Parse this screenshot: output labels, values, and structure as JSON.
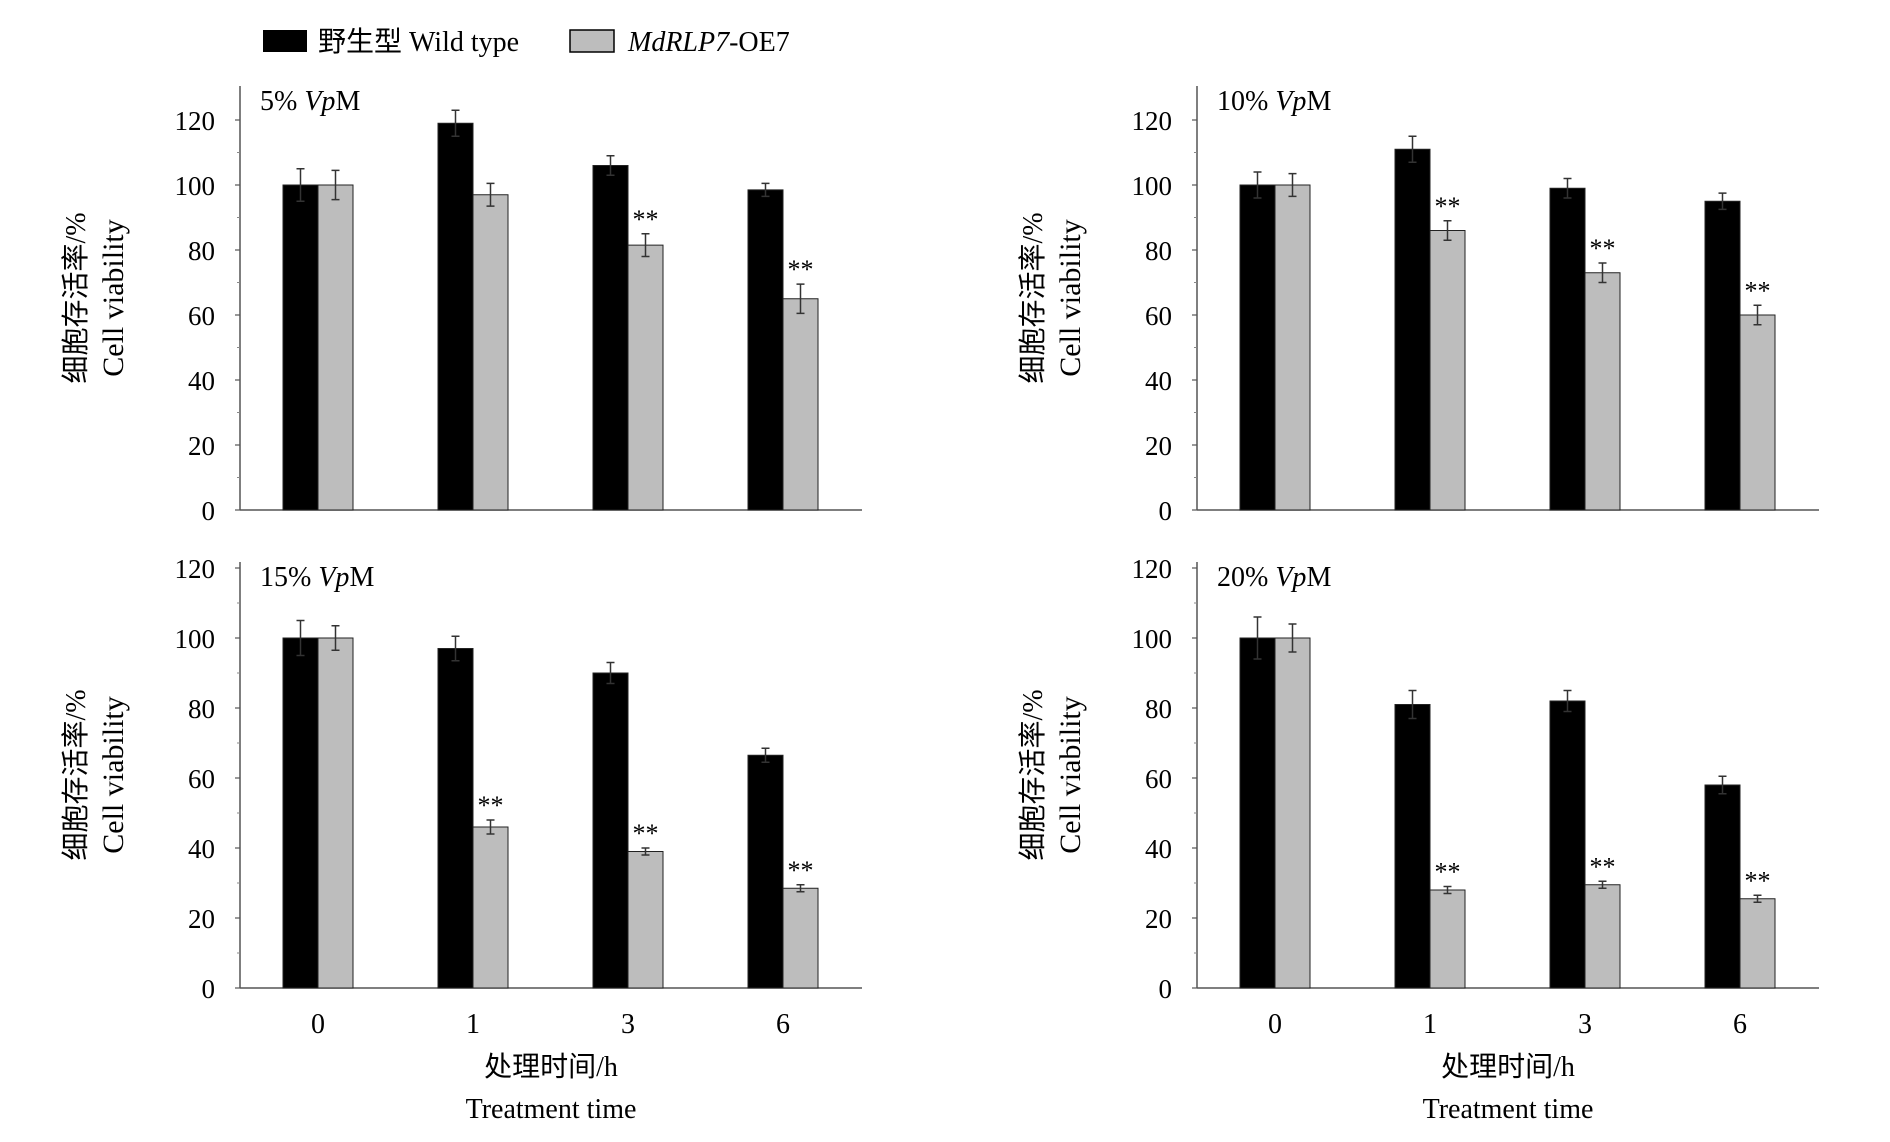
{
  "legend": {
    "wt_label": "野生型 Wild type",
    "oe_italic": "MdRLP7",
    "oe_suffix": "-OE7"
  },
  "colors": {
    "wt": "#000000",
    "oe": "#bdbdbd"
  },
  "chart_data": [
    {
      "type": "bar",
      "title_prefix": "5% ",
      "title_italic": "Vp",
      "title_suffix": "M",
      "categories": [
        "0",
        "1",
        "3",
        "6"
      ],
      "ylim": [
        0,
        130
      ],
      "yticks": [
        0,
        20,
        40,
        60,
        80,
        100,
        120
      ],
      "ylabel_cn": "细胞存活率/%",
      "ylabel_en": "Cell viability",
      "xlabel_cn": "",
      "xlabel_en": "",
      "show_xticks": false,
      "series": [
        {
          "name": "野生型 Wild type",
          "values": [
            100,
            119,
            106,
            98.5
          ],
          "errors": [
            5,
            4,
            3,
            2
          ]
        },
        {
          "name": "MdRLP7-OE7",
          "values": [
            100,
            97,
            81.5,
            65
          ],
          "errors": [
            4.5,
            3.5,
            3.5,
            4.5
          ],
          "significance": [
            "",
            "",
            "**",
            "**"
          ]
        }
      ]
    },
    {
      "type": "bar",
      "title_prefix": "10% ",
      "title_italic": "Vp",
      "title_suffix": "M",
      "categories": [
        "0",
        "1",
        "3",
        "6"
      ],
      "ylim": [
        0,
        130
      ],
      "yticks": [
        0,
        20,
        40,
        60,
        80,
        100,
        120
      ],
      "ylabel_cn": "细胞存活率/%",
      "ylabel_en": "Cell viability",
      "xlabel_cn": "",
      "xlabel_en": "",
      "show_xticks": false,
      "series": [
        {
          "name": "野生型 Wild type",
          "values": [
            100,
            111,
            99,
            95
          ],
          "errors": [
            4,
            4,
            3,
            2.5
          ]
        },
        {
          "name": "MdRLP7-OE7",
          "values": [
            100,
            86,
            73,
            60
          ],
          "errors": [
            3.5,
            3,
            3,
            3
          ],
          "significance": [
            "",
            "**",
            "**",
            "**"
          ]
        }
      ]
    },
    {
      "type": "bar",
      "title_prefix": "15% ",
      "title_italic": "Vp",
      "title_suffix": "M",
      "categories": [
        "0",
        "1",
        "3",
        "6"
      ],
      "ylim": [
        0,
        122
      ],
      "yticks": [
        0,
        20,
        40,
        60,
        80,
        100,
        120
      ],
      "ylabel_cn": "细胞存活率/%",
      "ylabel_en": "Cell viability",
      "xlabel_cn": "处理时间/h",
      "xlabel_en": "Treatment time",
      "show_xticks": true,
      "series": [
        {
          "name": "野生型 Wild type",
          "values": [
            100,
            97,
            90,
            66.5
          ],
          "errors": [
            5,
            3.5,
            3,
            2
          ]
        },
        {
          "name": "MdRLP7-OE7",
          "values": [
            100,
            46,
            39,
            28.5
          ],
          "errors": [
            3.5,
            2,
            1,
            1
          ],
          "significance": [
            "",
            "**",
            "**",
            "**"
          ]
        }
      ]
    },
    {
      "type": "bar",
      "title_prefix": "20% ",
      "title_italic": "Vp",
      "title_suffix": "M",
      "categories": [
        "0",
        "1",
        "3",
        "6"
      ],
      "ylim": [
        0,
        122
      ],
      "yticks": [
        0,
        20,
        40,
        60,
        80,
        100,
        120
      ],
      "ylabel_cn": "细胞存活率/%",
      "ylabel_en": "Cell viability",
      "xlabel_cn": "处理时间/h",
      "xlabel_en": "Treatment time",
      "show_xticks": true,
      "series": [
        {
          "name": "野生型 Wild type",
          "values": [
            100,
            81,
            82,
            58
          ],
          "errors": [
            6,
            4,
            3,
            2.5
          ]
        },
        {
          "name": "MdRLP7-OE7",
          "values": [
            100,
            28,
            29.5,
            25.5
          ],
          "errors": [
            4,
            1,
            1,
            1
          ],
          "significance": [
            "",
            "**",
            "**",
            "**"
          ]
        }
      ]
    }
  ]
}
